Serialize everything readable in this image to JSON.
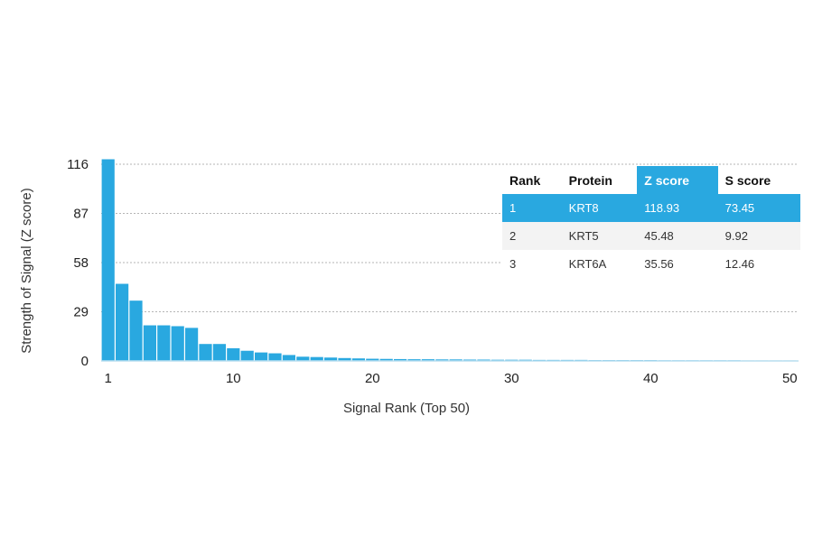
{
  "chart_data": {
    "type": "bar",
    "xlabel": "Signal Rank (Top 50)",
    "ylabel": "Strength of Signal (Z score)",
    "ylim": [
      0,
      120
    ],
    "yticks": [
      0,
      29,
      58,
      87,
      116
    ],
    "xticks": [
      1,
      10,
      20,
      30,
      40,
      50
    ],
    "grid": "horizontal dashed",
    "bar_color": "#29a8e0",
    "x": [
      1,
      2,
      3,
      4,
      5,
      6,
      7,
      8,
      9,
      10,
      11,
      12,
      13,
      14,
      15,
      16,
      17,
      18,
      19,
      20,
      21,
      22,
      23,
      24,
      25,
      26,
      27,
      28,
      29,
      30,
      31,
      32,
      33,
      34,
      35,
      36,
      37,
      38,
      39,
      40,
      41,
      42,
      43,
      44,
      45,
      46,
      47,
      48,
      49,
      50
    ],
    "values": [
      118.93,
      45.48,
      35.56,
      21,
      21,
      20.5,
      19.5,
      10,
      10,
      7.5,
      6,
      5,
      4.5,
      3.5,
      2.5,
      2.3,
      2,
      1.7,
      1.5,
      1.3,
      1.2,
      1.1,
      1,
      1,
      0.9,
      0.9,
      0.8,
      0.8,
      0.7,
      0.7,
      0.7,
      0.6,
      0.6,
      0.6,
      0.6,
      0.5,
      0.5,
      0.5,
      0.5,
      0.5,
      0.4,
      0.4,
      0.4,
      0.4,
      0.4,
      0.4,
      0.3,
      0.3,
      0.3,
      0.3
    ]
  },
  "table": {
    "headers": [
      "Rank",
      "Protein",
      "Z score",
      "S score"
    ],
    "rows": [
      [
        "1",
        "KRT8",
        "118.93",
        "73.45"
      ],
      [
        "2",
        "KRT5",
        "45.48",
        "9.92"
      ],
      [
        "3",
        "KRT6A",
        "35.56",
        "12.46"
      ]
    ]
  }
}
